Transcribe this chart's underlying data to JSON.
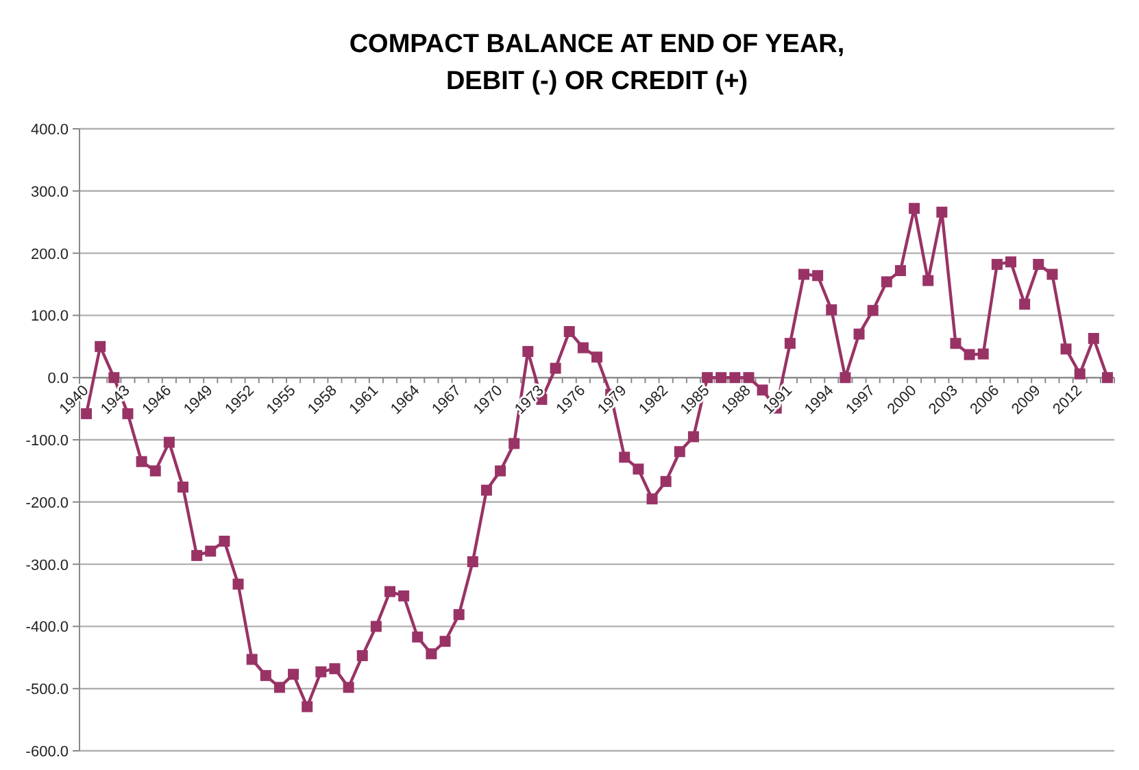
{
  "chart_data": {
    "type": "line",
    "title": "COMPACT BALANCE AT END OF YEAR, DEBIT (-) OR CREDIT (+)",
    "categories": [
      "1940",
      null,
      null,
      "1943",
      null,
      null,
      "1946",
      null,
      null,
      "1949",
      null,
      null,
      "1952",
      null,
      null,
      "1955",
      null,
      null,
      "1958",
      null,
      null,
      "1961",
      null,
      null,
      "1964",
      null,
      null,
      "1967",
      null,
      null,
      "1970",
      null,
      null,
      "1973",
      null,
      null,
      "1976",
      null,
      null,
      "1979",
      null,
      null,
      "1982",
      null,
      null,
      "1985",
      null,
      null,
      "1988",
      null,
      null,
      "1991",
      null,
      null,
      "1994",
      null,
      null,
      "1997",
      null,
      null,
      "2000",
      null,
      null,
      "2003",
      null,
      null,
      "2006",
      null,
      null,
      "2009",
      null,
      null,
      "2012",
      null,
      null
    ],
    "series": [
      {
        "color": "#993366",
        "values": [
          -58,
          50,
          0,
          -58,
          -135,
          -150,
          -104,
          -176,
          -286,
          -279,
          -263,
          -332,
          -453,
          -479,
          -498,
          -477,
          -529,
          -473,
          -468,
          -498,
          -447,
          -400,
          -344,
          -351,
          -417,
          -444,
          -424,
          -381,
          -296,
          -181,
          -150,
          -106,
          42,
          -35,
          15,
          74,
          48,
          33,
          -27,
          -128,
          -147,
          -195,
          -167,
          -119,
          -95,
          0,
          0,
          0,
          0,
          -20,
          -49,
          55,
          166,
          164,
          109,
          0,
          70,
          108,
          154,
          172,
          272,
          156,
          266,
          55,
          37,
          38,
          182,
          186,
          118,
          182,
          166,
          46,
          6,
          63,
          0
        ]
      }
    ],
    "ylim": [
      -600,
      400
    ],
    "yticks": [
      {
        "value": -600,
        "label": "-600.0"
      },
      {
        "value": -500,
        "label": "-500.0"
      },
      {
        "value": -400,
        "label": "-400.0"
      },
      {
        "value": -300,
        "label": "-300.0"
      },
      {
        "value": -200,
        "label": "-200.0"
      },
      {
        "value": -100,
        "label": "-100.0"
      },
      {
        "value": 0,
        "label": "0.0"
      },
      {
        "value": 100,
        "label": "100.0"
      },
      {
        "value": 200,
        "label": "200.0"
      },
      {
        "value": 300,
        "label": "300.0"
      },
      {
        "value": 400,
        "label": "400.0"
      }
    ],
    "grid": "y",
    "marker": "square"
  }
}
